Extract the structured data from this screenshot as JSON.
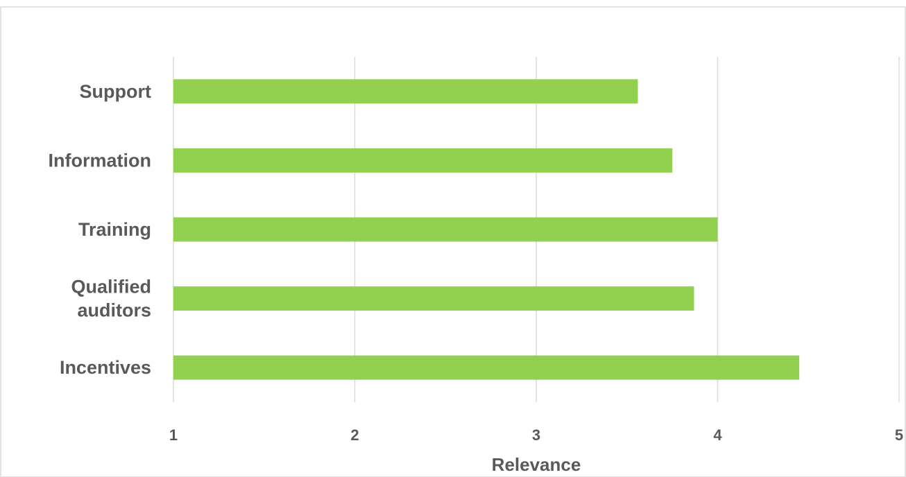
{
  "chart_data": {
    "type": "bar",
    "orientation": "horizontal",
    "categories": [
      "Support",
      "Information",
      "Training",
      "Qualified auditors",
      "Incentives"
    ],
    "category_lines": [
      [
        "Support"
      ],
      [
        "Information"
      ],
      [
        "Training"
      ],
      [
        "Qualified",
        "auditors"
      ],
      [
        "Incentives"
      ]
    ],
    "values": [
      3.56,
      3.75,
      4.0,
      3.87,
      4.45
    ],
    "title": "",
    "xlabel": "Relevance",
    "ylabel": "",
    "xlim": [
      1,
      5
    ],
    "xticks": [
      "1",
      "2",
      "3",
      "4",
      "5"
    ],
    "grid": true,
    "legend": "none",
    "bar_color": "#92d050",
    "grid_color": "#d9d9d9",
    "text_color": "#595959",
    "border_color": "#d9d9d9"
  }
}
